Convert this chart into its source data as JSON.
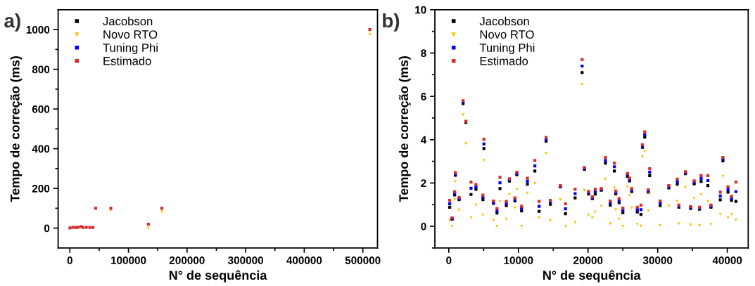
{
  "chart_data": [
    {
      "type": "scatter",
      "title": "a)",
      "xlabel": "N° de sequência",
      "ylabel": "Tempo de correção (ms)",
      "xlim": [
        -20000,
        525000
      ],
      "ylim": [
        -100,
        1100
      ],
      "xticks": [
        0,
        {
          "value": 50000,
          "label": null
        },
        100000,
        {
          "value": 150000,
          "label": null
        },
        200000,
        {
          "value": 250000,
          "label": null
        },
        300000,
        {
          "value": 350000,
          "label": null
        },
        400000,
        {
          "value": 450000,
          "label": null
        },
        500000
      ],
      "yticks": [
        0,
        {
          "value": 100,
          "label": null
        },
        200,
        {
          "value": 300,
          "label": null
        },
        400,
        {
          "value": 500,
          "label": null
        },
        600,
        {
          "value": 700,
          "label": null
        },
        800,
        {
          "value": 900,
          "label": null
        },
        1000
      ],
      "legend": "top left",
      "grid": false,
      "x": [
        130,
        5040,
        9770,
        13970,
        19150,
        22500,
        28140,
        33990,
        39370,
        44000,
        70000,
        134000,
        157000,
        512000
      ],
      "series": [
        {
          "name": "Jacobson",
          "color": "#000000",
          "marker": "square",
          "values": [
            null,
            null,
            null,
            null,
            null,
            null,
            null,
            null,
            null,
            null,
            null,
            null,
            null,
            null
          ]
        },
        {
          "name": "Novo RTO",
          "color": "#ffc000",
          "marker": "triangle",
          "values": [
            null,
            null,
            null,
            null,
            null,
            null,
            null,
            null,
            null,
            null,
            88,
            0,
            82,
            975
          ]
        },
        {
          "name": "Tuning Phi",
          "color": "#0000ff",
          "marker": "square",
          "values": [
            null,
            null,
            null,
            null,
            null,
            null,
            null,
            null,
            null,
            null,
            null,
            null,
            null,
            null
          ]
        },
        {
          "name": "Estimado",
          "color": "#d92b2b",
          "marker": "square",
          "values": [
            1,
            4,
            3,
            4,
            8,
            3,
            4,
            3,
            3,
            100,
            100,
            20,
            100,
            1000
          ]
        }
      ]
    },
    {
      "type": "scatter",
      "title": "b)",
      "xlabel": "N° de sequência",
      "ylabel": "Tempo de correção (ms)",
      "xlim": [
        -2000,
        43000
      ],
      "ylim": [
        -1,
        10
      ],
      "xticks": [
        0,
        {
          "value": 5000,
          "label": null
        },
        10000,
        {
          "value": 15000,
          "label": null
        },
        20000,
        {
          "value": 25000,
          "label": null
        },
        30000,
        {
          "value": 35000,
          "label": null
        },
        40000
      ],
      "yticks": [
        {
          "value": -1,
          "label": null
        },
        0,
        {
          "value": 1,
          "label": null
        },
        2,
        {
          "value": 3,
          "label": null
        },
        4,
        {
          "value": 5,
          "label": null
        },
        6,
        {
          "value": 7,
          "label": null
        },
        8,
        {
          "value": 9,
          "label": null
        },
        10
      ],
      "legend": "top left",
      "grid": false,
      "x": [
        130,
        470,
        840,
        940,
        1480,
        2050,
        2450,
        3190,
        3900,
        4900,
        5040,
        6420,
        6920,
        7350,
        8260,
        8700,
        9500,
        9770,
        10450,
        11290,
        12360,
        12970,
        13970,
        14580,
        16020,
        16760,
        18140,
        19150,
        19480,
        20080,
        20620,
        21030,
        21900,
        22500,
        23190,
        23780,
        23980,
        24460,
        25000,
        25660,
        25960,
        26270,
        27070,
        27600,
        27810,
        28140,
        28650,
        28850,
        30360,
        31600,
        32820,
        33050,
        33990,
        34730,
        35240,
        36000,
        36240,
        37210,
        37650,
        38990,
        39370,
        40100,
        40600,
        41240
      ],
      "series": [
        {
          "name": "Jacobson",
          "color": "#000000",
          "marker": "square",
          "values": [
            0.88,
            0.33,
            1.45,
            2.36,
            1.23,
            5.67,
            4.8,
            1.47,
            1.71,
            1.23,
            3.59,
            1.06,
            0.61,
            1.74,
            0.95,
            2.09,
            1.17,
            2.38,
            0.71,
            1.94,
            2.55,
            0.69,
            3.93,
            1.02,
            1.82,
            0.58,
            1.31,
            7.1,
            2.63,
            1.49,
            1.28,
            1.49,
            1.67,
            2.92,
            0.98,
            2.55,
            1.5,
            1.09,
            0.63,
            2.31,
            2.1,
            1.6,
            0.66,
            0.55,
            3.65,
            4.12,
            1.58,
            2.34,
            0.95,
            1.77,
            1.94,
            0.88,
            2.43,
            0.82,
            1.96,
            0.79,
            2.07,
            1.88,
            0.88,
            1.22,
            3.02,
            1.58,
            1.2,
            1.15
          ]
        },
        {
          "name": "Novo RTO",
          "color": "#ffc000",
          "marker": "triangle",
          "values": [
            0.28,
            0,
            1.23,
            2.07,
            0.75,
            5.15,
            3.82,
            0.39,
            0.98,
            0.53,
            3.04,
            0.28,
            0,
            1.15,
            0.33,
            1.47,
            0.85,
            1.69,
            0,
            1.53,
            1.98,
            0.39,
            3.37,
            0.26,
            1.23,
            0,
            0.17,
            6.55,
            1.66,
            0.52,
            0.39,
            0.66,
            0.93,
            2.18,
            0.12,
            1.77,
            0.77,
            0.33,
            0,
            1.82,
            1.42,
            0.85,
            0.09,
            0.01,
            3.2,
            3.45,
            0.71,
            1.5,
            0.04,
            0.93,
            1.15,
            0.12,
            1.8,
            0.06,
            1.29,
            0.04,
            1.47,
            1.15,
            0.09,
            0.55,
            2.31,
            0.39,
            0.55,
            0.3
          ]
        },
        {
          "name": "Tuning Phi",
          "color": "#0000ff",
          "marker": "square",
          "values": [
            1.04,
            0.36,
            1.52,
            2.42,
            1.28,
            5.74,
            null,
            1.76,
            1.82,
            1.33,
            3.8,
            1.11,
            0.72,
            2.01,
            1.05,
            2.15,
            1.24,
            2.44,
            0.82,
            2.08,
            2.79,
            0.92,
            4.0,
            1.11,
            1.85,
            0.81,
            1.51,
            7.4,
            2.68,
            1.55,
            1.32,
            1.6,
            1.7,
            3.04,
            1.08,
            2.75,
            1.56,
            1.18,
            0.74,
            2.38,
            2.16,
            1.67,
            0.77,
            0.77,
            3.7,
            4.23,
            1.63,
            2.5,
            1.06,
            1.82,
            2.06,
            0.93,
            2.47,
            0.86,
            2.03,
            0.83,
            2.21,
            2.11,
            0.93,
            1.4,
            3.1,
            1.7,
            1.3,
            1.6
          ]
        },
        {
          "name": "Estimado",
          "color": "#d92b2b",
          "marker": "square",
          "values": [
            1.2,
            0.39,
            1.6,
            2.48,
            1.34,
            5.8,
            4.85,
            2.04,
            1.93,
            1.44,
            4.02,
            1.17,
            0.82,
            2.26,
            1.15,
            2.2,
            1.31,
            2.5,
            0.93,
            2.22,
            3.04,
            1.15,
            4.1,
            1.2,
            1.88,
            1.04,
            1.71,
            7.7,
            2.72,
            1.61,
            1.36,
            1.71,
            1.74,
            3.18,
            1.17,
            2.92,
            1.63,
            1.28,
            0.84,
            2.44,
            2.23,
            1.74,
            0.88,
            0.98,
            3.76,
            4.36,
            1.69,
            2.66,
            1.17,
            1.88,
            2.18,
            0.98,
            2.52,
            0.91,
            2.1,
            0.88,
            2.34,
            2.34,
            0.98,
            1.58,
            3.18,
            1.82,
            1.39,
            2.04
          ]
        }
      ]
    }
  ]
}
